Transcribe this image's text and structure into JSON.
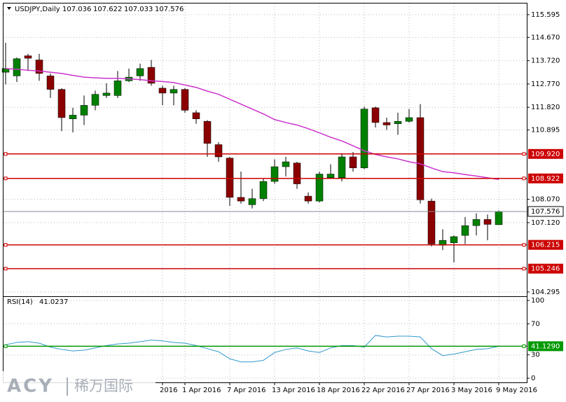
{
  "chart_data": [
    {
      "type": "candlestick",
      "title": "USDJPY,Daily",
      "categories": [
        null,
        null,
        null,
        null,
        null,
        null,
        null,
        null,
        null,
        null,
        null,
        null,
        null,
        null,
        "2016",
        null,
        "1 Apr 2016",
        null,
        null,
        null,
        "7 Apr 2016",
        null,
        null,
        null,
        "13 Apr 2016",
        null,
        null,
        null,
        "18 Apr 2016",
        null,
        null,
        null,
        "22 Apr 2016",
        null,
        null,
        null,
        "27 Apr 2016",
        null,
        null,
        null,
        "3 May 2016",
        null,
        null,
        null,
        "9 May 2016"
      ],
      "open": [
        113.25,
        113.1,
        113.92,
        113.75,
        113.1,
        112.55,
        111.35,
        111.5,
        111.9,
        112.3,
        112.3,
        112.9,
        113.1,
        113.45,
        112.6,
        112.4,
        112.55,
        111.6,
        111.25,
        110.3,
        109.75,
        108.15,
        107.85,
        108.1,
        108.8,
        109.4,
        109.55,
        108.2,
        108.0,
        108.95,
        108.95,
        109.8,
        109.35,
        111.8,
        111.2,
        111.15,
        111.25,
        111.4,
        108.0,
        106.2,
        106.3,
        106.6,
        107.0,
        107.25,
        107.036
      ],
      "high": [
        114.45,
        113.85,
        114.0,
        114.0,
        113.2,
        112.6,
        111.8,
        112.3,
        112.5,
        112.8,
        113.3,
        113.4,
        113.6,
        113.75,
        112.7,
        112.7,
        112.6,
        111.7,
        111.3,
        110.4,
        109.8,
        109.2,
        108.5,
        108.9,
        109.7,
        109.8,
        109.6,
        108.35,
        109.2,
        109.5,
        109.95,
        110.0,
        111.85,
        111.85,
        111.4,
        111.6,
        111.75,
        111.95,
        108.1,
        106.85,
        106.6,
        107.35,
        107.5,
        107.45,
        107.622
      ],
      "low": [
        112.75,
        112.85,
        113.3,
        112.9,
        112.2,
        110.85,
        110.8,
        111.1,
        111.7,
        112.2,
        112.2,
        112.85,
        112.9,
        112.7,
        111.9,
        111.9,
        111.6,
        111.15,
        109.8,
        109.6,
        107.8,
        107.9,
        107.7,
        108.0,
        108.7,
        109.0,
        108.5,
        107.9,
        107.95,
        108.9,
        108.8,
        109.2,
        109.3,
        111.0,
        110.9,
        110.7,
        111.2,
        107.9,
        106.15,
        106.0,
        105.5,
        106.25,
        106.6,
        106.4,
        107.033
      ],
      "close": [
        113.4,
        113.8,
        113.82,
        113.2,
        112.55,
        111.4,
        111.5,
        111.9,
        112.35,
        112.4,
        112.9,
        113.05,
        113.4,
        112.8,
        112.4,
        112.55,
        111.7,
        111.35,
        110.35,
        109.8,
        108.15,
        108.0,
        108.1,
        108.8,
        109.4,
        109.6,
        108.7,
        108.0,
        109.1,
        109.1,
        109.8,
        109.35,
        111.75,
        111.2,
        111.1,
        111.25,
        111.4,
        108.05,
        106.25,
        106.4,
        106.55,
        107.0,
        107.25,
        107.05,
        107.576
      ],
      "up_color": "#008000",
      "down_color": "#8b0000",
      "series": [
        {
          "color": "#cc33cc",
          "values": [
            113.4,
            113.37,
            113.33,
            113.3,
            113.25,
            113.2,
            113.12,
            113.05,
            113.02,
            113.0,
            113.0,
            112.98,
            112.95,
            112.9,
            112.87,
            112.83,
            112.73,
            112.63,
            112.48,
            112.35,
            112.15,
            111.95,
            111.75,
            111.55,
            111.32,
            111.2,
            111.1,
            110.95,
            110.78,
            110.6,
            110.45,
            110.25,
            110.05,
            109.9,
            109.8,
            109.72,
            109.6,
            109.52,
            109.35,
            109.2,
            109.15,
            109.08,
            109.02,
            108.95,
            108.88
          ]
        }
      ],
      "levels": [
        {
          "value": 109.92,
          "label": "109.920"
        },
        {
          "value": 108.922,
          "label": "108.922"
        },
        {
          "value": 106.215,
          "label": "106.215"
        },
        {
          "value": 105.246,
          "label": "105.246"
        }
      ],
      "level_color": "#cc0000",
      "ylim": [
        104.15,
        116.05
      ],
      "yticks": [
        115.595,
        {
          "value": 114.67,
          "label": "114.670"
        },
        {
          "value": 113.72,
          "label": "113.720"
        },
        {
          "value": 112.77,
          "label": "112.770"
        },
        {
          "value": 111.82,
          "label": "111.820"
        },
        110.895,
        {
          "value": 108.07,
          "label": "108.070"
        },
        {
          "value": 107.12,
          "label": "107.120"
        },
        104.295
      ],
      "grid": true
    },
    {
      "type": "line",
      "title": "RSI(14)",
      "series": [
        {
          "color": "#3399cc",
          "values": [
            43,
            46,
            47,
            45,
            40,
            37,
            35,
            36,
            39,
            42,
            44,
            45,
            47,
            49,
            48,
            46,
            45,
            42,
            38,
            34,
            25,
            21,
            21,
            23,
            33,
            37,
            39,
            35,
            33,
            39,
            42,
            42,
            40,
            55,
            53,
            54,
            54,
            53,
            38,
            29,
            31,
            34,
            37,
            38,
            41.0237
          ]
        }
      ],
      "levels": [
        {
          "value": 41.129,
          "label": "41.1290"
        }
      ],
      "level_color": "#009900",
      "ylim": [
        -4.5,
        103.6
      ],
      "yticks": [
        100,
        70,
        30,
        0
      ],
      "grid": true
    }
  ],
  "watermark": {
    "brand": "ACY",
    "name": "稀万国际"
  }
}
